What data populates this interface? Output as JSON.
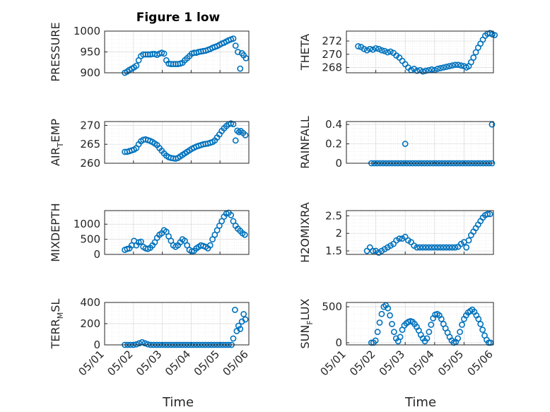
{
  "figure_title": "Figure 1 low",
  "colors": {
    "series": "#0072bd",
    "axis": "#262626",
    "grid": "#d9d9d9"
  },
  "chart_data": [
    {
      "type": "scatter",
      "panel": "pressure",
      "ylabel": "PRESSURE",
      "ylabel_parts": [
        "PRESSURE"
      ],
      "xlim": [
        "05/01",
        "05/06"
      ],
      "xticks": [
        "05/01",
        "05/02",
        "05/03",
        "05/04",
        "05/05",
        "05/06"
      ],
      "ylim": [
        900,
        1000
      ],
      "yticks": [
        "900",
        "950",
        "1000"
      ],
      "x": [
        1.7,
        1.78,
        1.86,
        1.94,
        2.02,
        2.1,
        2.18,
        2.26,
        2.34,
        2.42,
        2.5,
        2.58,
        2.66,
        2.74,
        2.82,
        2.9,
        2.98,
        3.06,
        3.14,
        3.22,
        3.3,
        3.38,
        3.46,
        3.54,
        3.62,
        3.7,
        3.78,
        3.86,
        3.94,
        4.02,
        4.1,
        4.18,
        4.26,
        4.34,
        4.42,
        4.5,
        4.58,
        4.66,
        4.74,
        4.82,
        4.9,
        4.98,
        5.06,
        5.14,
        5.22,
        5.3,
        5.38,
        5.46,
        5.54,
        5.62,
        5.7,
        5.76,
        5.82,
        5.9
      ],
      "y": [
        900,
        903,
        907,
        910,
        913,
        917,
        930,
        940,
        944,
        944,
        944,
        944,
        945,
        945,
        943,
        946,
        948,
        946,
        930,
        922,
        921,
        921,
        921,
        921,
        922,
        924,
        930,
        935,
        940,
        946,
        948,
        948,
        950,
        951,
        952,
        953,
        955,
        957,
        960,
        962,
        964,
        967,
        970,
        972,
        975,
        978,
        980,
        982,
        965,
        950,
        910,
        947,
        942,
        935
      ]
    },
    {
      "type": "scatter",
      "panel": "theta",
      "ylabel": "THETA",
      "ylabel_parts": [
        "THETA"
      ],
      "ylim": [
        267.2,
        273.5
      ],
      "yticks": [
        "268",
        "270",
        "272"
      ],
      "x": [
        1.4,
        1.5,
        1.6,
        1.7,
        1.8,
        1.9,
        2.0,
        2.1,
        2.2,
        2.3,
        2.4,
        2.5,
        2.6,
        2.7,
        2.8,
        2.9,
        3.0,
        3.1,
        3.2,
        3.3,
        3.4,
        3.5,
        3.6,
        3.7,
        3.8,
        3.9,
        4.0,
        4.1,
        4.2,
        4.3,
        4.4,
        4.5,
        4.6,
        4.7,
        4.8,
        4.9,
        5.0,
        5.08,
        5.16,
        5.24,
        5.32,
        5.4,
        5.48,
        5.56,
        5.64,
        5.72,
        5.8,
        5.88,
        5.96,
        6.04
      ],
      "y": [
        271.2,
        271.1,
        270.8,
        270.6,
        270.8,
        270.7,
        270.9,
        270.8,
        270.6,
        270.5,
        270.3,
        270.4,
        270.2,
        269.8,
        269.5,
        269.0,
        268.5,
        268.0,
        267.6,
        267.8,
        267.5,
        267.6,
        267.4,
        267.5,
        267.6,
        267.7,
        267.6,
        267.8,
        267.9,
        268.0,
        268.1,
        268.2,
        268.3,
        268.4,
        268.4,
        268.3,
        268.2,
        268.0,
        268.2,
        268.8,
        269.5,
        270.3,
        271.0,
        271.6,
        272.2,
        272.8,
        273.1,
        273.2,
        273.0,
        272.9
      ]
    },
    {
      "type": "scatter",
      "panel": "air_temp",
      "ylabel": "AIR_TEMP",
      "ylabel_parts": [
        "AIR",
        "T",
        "EMP"
      ],
      "ylim": [
        260,
        271
      ],
      "yticks": [
        "260",
        "265",
        "270"
      ],
      "x": [
        1.7,
        1.78,
        1.86,
        1.94,
        2.02,
        2.1,
        2.18,
        2.26,
        2.34,
        2.42,
        2.5,
        2.58,
        2.66,
        2.74,
        2.82,
        2.9,
        2.98,
        3.06,
        3.14,
        3.22,
        3.3,
        3.38,
        3.46,
        3.54,
        3.62,
        3.7,
        3.78,
        3.86,
        3.94,
        4.02,
        4.1,
        4.18,
        4.26,
        4.34,
        4.42,
        4.5,
        4.58,
        4.66,
        4.74,
        4.82,
        4.9,
        4.98,
        5.06,
        5.14,
        5.22,
        5.3,
        5.38,
        5.46,
        5.54,
        5.6,
        5.66,
        5.72,
        5.8,
        5.88
      ],
      "y": [
        263.0,
        263.0,
        263.2,
        263.4,
        263.6,
        264.0,
        265.0,
        265.8,
        266.2,
        266.3,
        266.1,
        265.9,
        265.6,
        265.2,
        264.8,
        264.0,
        263.3,
        262.6,
        262.0,
        261.6,
        261.4,
        261.3,
        261.2,
        261.4,
        261.8,
        262.2,
        262.6,
        263.0,
        263.4,
        263.8,
        264.1,
        264.4,
        264.6,
        264.8,
        265.0,
        265.1,
        265.2,
        265.4,
        265.6,
        266.0,
        266.8,
        267.6,
        268.5,
        269.2,
        269.8,
        270.3,
        270.5,
        270.3,
        266.0,
        268.6,
        268.2,
        268.5,
        268.0,
        267.4
      ]
    },
    {
      "type": "scatter",
      "panel": "rainfall",
      "ylabel": "RAINFALL",
      "ylabel_parts": [
        "RAINFALL"
      ],
      "ylim": [
        0,
        0.43
      ],
      "yticks": [
        "0",
        "0.2",
        "0.4"
      ],
      "x": [
        1.85,
        1.95,
        2.05,
        2.15,
        2.25,
        2.35,
        2.45,
        2.55,
        2.65,
        2.75,
        2.85,
        2.95,
        3.05,
        3.15,
        3.25,
        3.35,
        3.45,
        3.55,
        3.65,
        3.75,
        3.85,
        3.95,
        4.05,
        4.15,
        4.25,
        4.35,
        4.45,
        4.55,
        4.65,
        4.75,
        4.85,
        4.95,
        5.05,
        5.15,
        5.25,
        5.35,
        5.45,
        5.55,
        5.65,
        5.75,
        5.85,
        5.95,
        3.0,
        5.95
      ],
      "y": [
        0,
        0,
        0,
        0,
        0,
        0,
        0,
        0,
        0,
        0,
        0,
        0,
        0,
        0,
        0,
        0,
        0,
        0,
        0,
        0,
        0,
        0,
        0,
        0,
        0,
        0,
        0,
        0,
        0,
        0,
        0,
        0,
        0,
        0,
        0,
        0,
        0,
        0,
        0,
        0,
        0,
        0,
        0.2,
        0.4
      ]
    },
    {
      "type": "scatter",
      "panel": "mixdepth",
      "ylabel": "MIXDEPTH",
      "ylabel_parts": [
        "MIXDEPTH"
      ],
      "ylim": [
        0,
        1450
      ],
      "yticks": [
        "0",
        "500",
        "1000"
      ],
      "x": [
        1.7,
        1.78,
        1.86,
        1.94,
        2.02,
        2.1,
        2.18,
        2.26,
        2.34,
        2.42,
        2.5,
        2.58,
        2.66,
        2.74,
        2.82,
        2.9,
        2.98,
        3.06,
        3.14,
        3.22,
        3.3,
        3.38,
        3.46,
        3.54,
        3.62,
        3.7,
        3.78,
        3.86,
        3.94,
        4.02,
        4.1,
        4.18,
        4.26,
        4.34,
        4.42,
        4.5,
        4.58,
        4.66,
        4.74,
        4.82,
        4.9,
        4.98,
        5.06,
        5.14,
        5.22,
        5.3,
        5.38,
        5.46,
        5.54,
        5.62,
        5.7,
        5.78,
        5.86
      ],
      "y": [
        150,
        180,
        200,
        300,
        450,
        300,
        400,
        420,
        250,
        200,
        180,
        220,
        300,
        400,
        550,
        650,
        700,
        800,
        750,
        600,
        450,
        300,
        250,
        300,
        400,
        500,
        450,
        300,
        150,
        100,
        120,
        200,
        250,
        300,
        280,
        250,
        200,
        300,
        500,
        650,
        800,
        950,
        1100,
        1250,
        1350,
        1380,
        1300,
        1100,
        950,
        850,
        780,
        700,
        650
      ]
    },
    {
      "type": "scatter",
      "panel": "h2omixra",
      "ylabel": "H2OMIXRA",
      "ylabel_parts": [
        "H2OMIXRA"
      ],
      "ylim": [
        1.4,
        2.65
      ],
      "yticks": [
        "1.5",
        "2",
        "2.5"
      ],
      "x": [
        1.7,
        1.8,
        1.9,
        2.0,
        2.1,
        2.2,
        2.3,
        2.4,
        2.5,
        2.6,
        2.7,
        2.8,
        2.9,
        3.0,
        3.1,
        3.2,
        3.3,
        3.4,
        3.5,
        3.6,
        3.7,
        3.8,
        3.9,
        4.0,
        4.1,
        4.2,
        4.3,
        4.4,
        4.5,
        4.6,
        4.7,
        4.8,
        4.9,
        5.0,
        5.08,
        5.16,
        5.24,
        5.32,
        5.4,
        5.48,
        5.56,
        5.64,
        5.72,
        5.8,
        5.88
      ],
      "y": [
        1.5,
        1.6,
        1.5,
        1.5,
        1.45,
        1.5,
        1.55,
        1.6,
        1.65,
        1.7,
        1.8,
        1.85,
        1.85,
        1.9,
        1.8,
        1.75,
        1.65,
        1.6,
        1.6,
        1.6,
        1.6,
        1.6,
        1.6,
        1.6,
        1.6,
        1.6,
        1.6,
        1.6,
        1.6,
        1.6,
        1.6,
        1.62,
        1.7,
        1.75,
        1.6,
        1.8,
        1.95,
        2.05,
        2.15,
        2.25,
        2.35,
        2.45,
        2.52,
        2.55,
        2.55
      ]
    },
    {
      "type": "scatter",
      "panel": "terr_msl",
      "ylabel": "TERR_MSL",
      "ylabel_parts": [
        "TERR",
        "M",
        "SL"
      ],
      "ylim": [
        0,
        400
      ],
      "yticks": [
        "0",
        "200",
        "400"
      ],
      "x": [
        1.7,
        1.8,
        1.9,
        2.0,
        2.1,
        2.2,
        2.3,
        2.4,
        2.5,
        2.6,
        2.7,
        2.8,
        2.9,
        3.0,
        3.1,
        3.2,
        3.3,
        3.4,
        3.5,
        3.6,
        3.7,
        3.8,
        3.9,
        4.0,
        4.1,
        4.2,
        4.3,
        4.4,
        4.5,
        4.6,
        4.7,
        4.8,
        4.9,
        5.0,
        5.1,
        5.2,
        5.3,
        5.4,
        5.46,
        5.52,
        5.58,
        5.64,
        5.7,
        5.76,
        5.82,
        5.88
      ],
      "y": [
        0,
        0,
        0,
        0,
        5,
        15,
        25,
        15,
        5,
        0,
        0,
        0,
        0,
        0,
        0,
        0,
        0,
        0,
        0,
        0,
        0,
        0,
        0,
        0,
        0,
        0,
        0,
        0,
        0,
        0,
        0,
        0,
        0,
        0,
        0,
        0,
        0,
        0,
        60,
        330,
        130,
        180,
        150,
        220,
        290,
        240
      ]
    },
    {
      "type": "scatter",
      "panel": "sun_flux",
      "ylabel": "SUN_FLUX",
      "ylabel_parts": [
        "SUN",
        "F",
        "LUX"
      ],
      "ylim": [
        -30,
        560
      ],
      "yticks": [
        "0",
        "500"
      ],
      "x": [
        1.85,
        1.92,
        1.99,
        2.06,
        2.13,
        2.2,
        2.27,
        2.34,
        2.41,
        2.48,
        2.55,
        2.62,
        2.69,
        2.76,
        2.83,
        2.9,
        2.97,
        3.04,
        3.11,
        3.18,
        3.25,
        3.32,
        3.39,
        3.46,
        3.53,
        3.6,
        3.67,
        3.74,
        3.81,
        3.88,
        3.95,
        4.02,
        4.09,
        4.16,
        4.23,
        4.3,
        4.37,
        4.44,
        4.51,
        4.58,
        4.65,
        4.72,
        4.79,
        4.86,
        4.93,
        5.0,
        5.07,
        5.14,
        5.21,
        5.28,
        5.35,
        5.42,
        5.49,
        5.56,
        5.63,
        5.7,
        5.77,
        5.84,
        5.9
      ],
      "y": [
        0,
        0,
        30,
        150,
        280,
        400,
        500,
        520,
        480,
        380,
        260,
        150,
        60,
        20,
        80,
        180,
        240,
        270,
        290,
        300,
        290,
        260,
        220,
        170,
        110,
        60,
        20,
        60,
        150,
        250,
        340,
        390,
        400,
        380,
        330,
        260,
        200,
        140,
        80,
        30,
        0,
        10,
        60,
        150,
        250,
        330,
        380,
        420,
        440,
        460,
        430,
        380,
        330,
        260,
        180,
        100,
        40,
        0,
        0
      ]
    }
  ],
  "xlabel_left": "Time",
  "xlabel_right": "Time"
}
